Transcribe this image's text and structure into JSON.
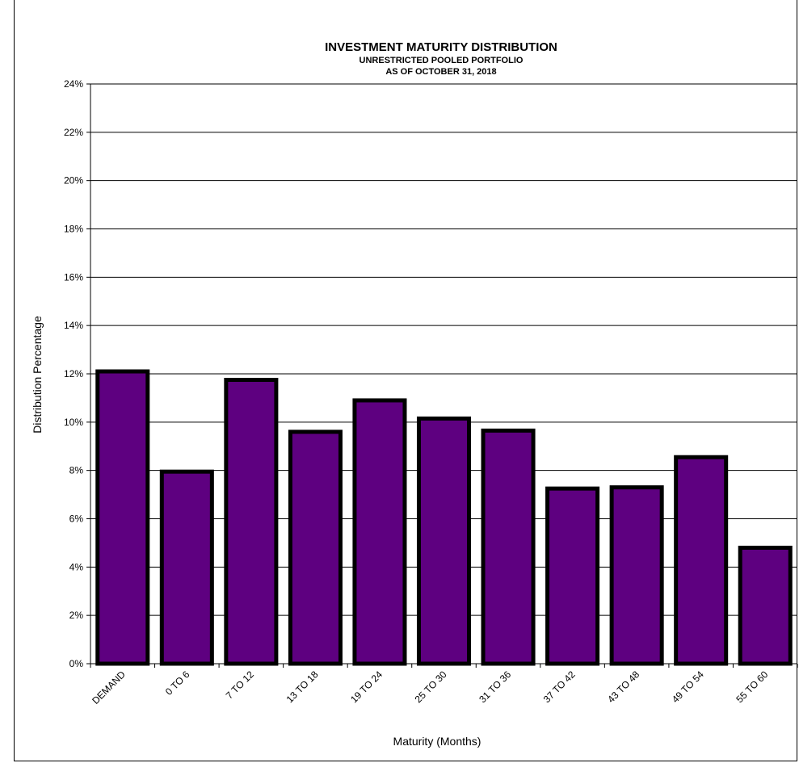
{
  "chart_data": {
    "type": "bar",
    "title": "INVESTMENT MATURITY DISTRIBUTION",
    "subtitle": [
      "UNRESTRICTED POOLED PORTFOLIO",
      "AS OF OCTOBER 31, 2018"
    ],
    "xlabel": "Maturity (Months)",
    "ylabel": "Distribution Percentage",
    "categories": [
      "DEMAND",
      "0 TO 6",
      "7 TO 12",
      "13 TO 18",
      "19 TO 24",
      "25 TO 30",
      "31 TO 36",
      "37 TO 42",
      "43 TO 48",
      "49 TO 54",
      "55 TO 60"
    ],
    "values": [
      12.1,
      7.95,
      11.75,
      9.6,
      10.9,
      10.15,
      9.65,
      7.25,
      7.3,
      8.55,
      4.8
    ],
    "ylim": [
      0,
      24
    ],
    "ytick_labels": [
      "0%",
      "2%",
      "4%",
      "6%",
      "8%",
      "10%",
      "12%",
      "14%",
      "16%",
      "18%",
      "20%",
      "22%",
      "24%"
    ],
    "grid": true,
    "bar_color": "#5e0080"
  }
}
